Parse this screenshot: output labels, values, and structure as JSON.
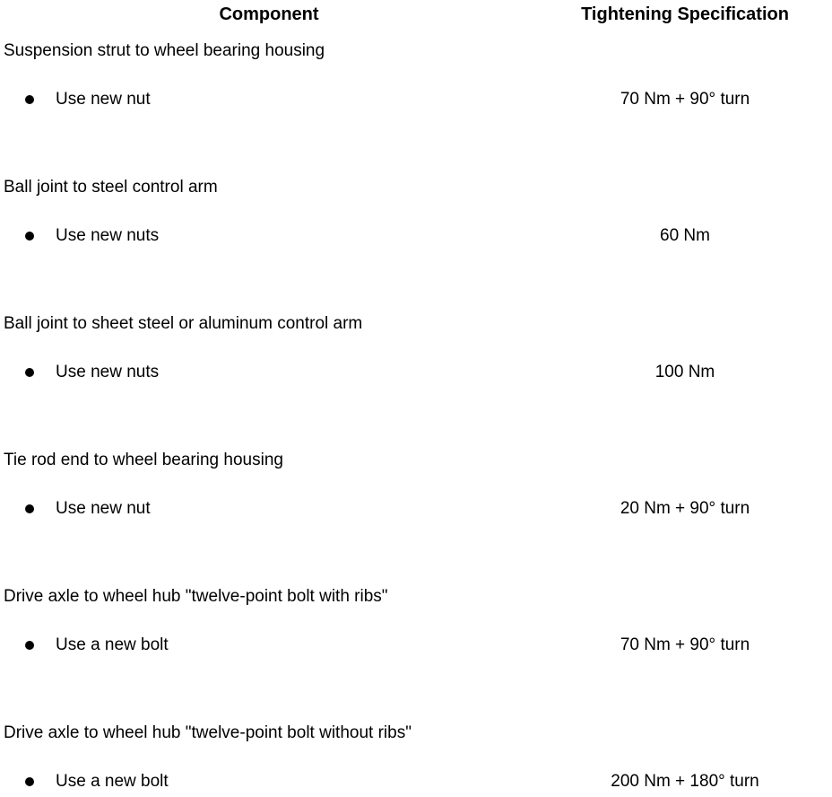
{
  "page": {
    "background": "#ffffff",
    "text_color": "#000000"
  },
  "table": {
    "headers": {
      "component": "Component",
      "spec": "Tightening Specification"
    },
    "rows": [
      {
        "component": "Suspension strut to wheel bearing housing",
        "bullet": "Use new nut",
        "spec": "70 Nm + 90° turn"
      },
      {
        "component": "Ball joint to steel control arm",
        "bullet": "Use new nuts",
        "spec": "60 Nm"
      },
      {
        "component": "Ball joint to sheet steel or aluminum control arm",
        "bullet": "Use new nuts",
        "spec": "100 Nm"
      },
      {
        "component": "Tie rod end to wheel bearing housing",
        "bullet": "Use new nut",
        "spec": "20 Nm + 90° turn"
      },
      {
        "component": "Drive axle to wheel hub \"twelve-point bolt with ribs\"",
        "bullet": "Use a new bolt",
        "spec": "70 Nm + 90° turn"
      },
      {
        "component": "Drive axle to wheel hub \"twelve-point bolt without ribs\"",
        "bullet": "Use a new bolt",
        "spec": "200 Nm + 180° turn"
      }
    ]
  }
}
